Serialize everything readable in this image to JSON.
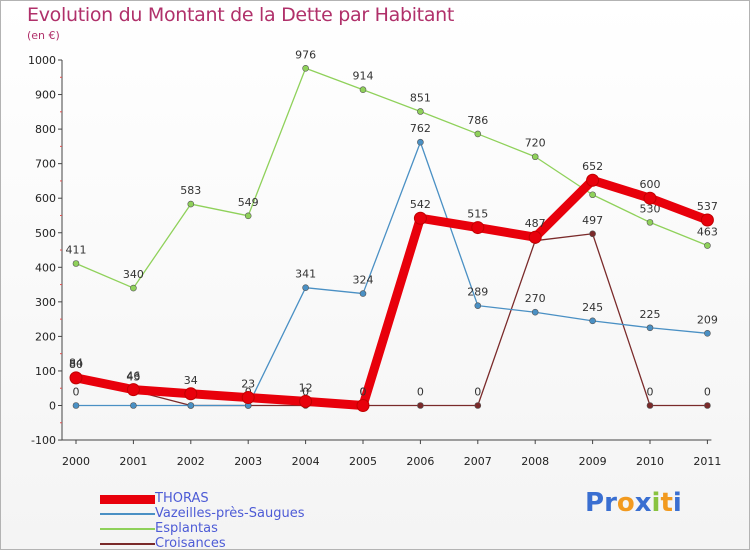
{
  "title": "Evolution du Montant de la Dette par Habitant",
  "subtitle": "(en €)",
  "logo": {
    "text": "Proxiti",
    "letters": [
      "P",
      "r",
      "o",
      "x",
      "i",
      "t",
      "i"
    ],
    "colors": [
      "#3a6fd1",
      "#3a6fd1",
      "#f29a1f",
      "#3a6fd1",
      "#89c33f",
      "#f29a1f",
      "#3a6fd1"
    ]
  },
  "chart_data": {
    "type": "line",
    "title": "Evolution du Montant de la Dette par Habitant",
    "subtitle": "(en €)",
    "xlabel": "",
    "ylabel": "",
    "x": [
      "2000",
      "2001",
      "2002",
      "2003",
      "2004",
      "2005",
      "2006",
      "2007",
      "2008",
      "2009",
      "2010",
      "2011"
    ],
    "ylim": [
      -100,
      1000
    ],
    "yticks": [
      -100,
      0,
      100,
      200,
      300,
      400,
      500,
      600,
      700,
      800,
      900,
      1000
    ],
    "grid": false,
    "legend_position": "bottom-left",
    "series": [
      {
        "name": "Croisances",
        "color": "#7a2a2a",
        "values": [
          84,
          43,
          0,
          0,
          0,
          0,
          0,
          0,
          477,
          497,
          0,
          0
        ],
        "labels": [
          "84",
          "43",
          "0",
          "0",
          "0",
          "0",
          "0",
          "0",
          "",
          "497",
          "0",
          "0"
        ]
      },
      {
        "name": "Vazeilles-près-Saugues",
        "color": "#4a90c4",
        "values": [
          0,
          0,
          0,
          0,
          341,
          324,
          762,
          289,
          270,
          245,
          225,
          209
        ],
        "labels": [
          "0",
          "",
          "",
          "",
          "341",
          "324",
          "762",
          "289",
          "270",
          "245",
          "225",
          "209"
        ]
      },
      {
        "name": "Esplantas",
        "color": "#8fd15a",
        "values": [
          411,
          340,
          583,
          549,
          976,
          914,
          851,
          786,
          720,
          610,
          530,
          463
        ],
        "labels": [
          "411",
          "340",
          "583",
          "549",
          "976",
          "914",
          "851",
          "786",
          "720",
          "",
          "530",
          "463"
        ]
      },
      {
        "name": "THORAS",
        "color": "#e8000b",
        "values": [
          80,
          46,
          34,
          23,
          12,
          0,
          542,
          515,
          487,
          652,
          600,
          537
        ],
        "labels": [
          "80",
          "46",
          "34",
          "23",
          "12",
          "0",
          "542",
          "515",
          "487",
          "652",
          "600",
          "537"
        ]
      }
    ]
  },
  "legend": [
    {
      "name": "THORAS",
      "color": "#e8000b"
    },
    {
      "name": "Vazeilles-près-Saugues",
      "color": "#4a90c4"
    },
    {
      "name": "Esplantas",
      "color": "#8fd15a"
    },
    {
      "name": "Croisances",
      "color": "#7a2a2a"
    }
  ]
}
